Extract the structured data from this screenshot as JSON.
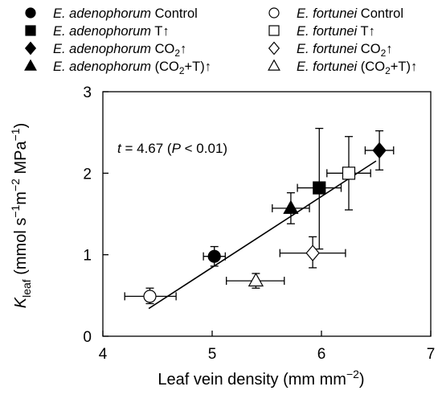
{
  "chart_data": {
    "type": "scatter",
    "xlabel": "Leaf vein density (mm mm",
    "xlabel_sup": "−2",
    "xlabel_close": ")",
    "ylabel": {
      "k": "K",
      "sub": "leaf",
      "unit_a": " (mmol s",
      "sup1": "−1",
      "unit_b": "m",
      "sup2": "−2",
      "unit_c": " MPa",
      "sup3": "−1",
      "close": ")"
    },
    "xlim": [
      4,
      7
    ],
    "ylim": [
      0,
      3
    ],
    "x_ticks": [
      "4",
      "5",
      "6",
      "7"
    ],
    "y_ticks": [
      "0",
      "1",
      "2",
      "3"
    ],
    "annotation": {
      "t": "t",
      "rest": " = 4.67 (",
      "p": "P",
      "rest2": " < 0.01)"
    },
    "regression": {
      "x1": 4.42,
      "y1": 0.34,
      "x2": 6.5,
      "y2": 2.15
    },
    "legend": [
      {
        "species": "E. adenophorum",
        "treatment": " Control",
        "marker": "circle",
        "fill": "filled"
      },
      {
        "species": "E. fortunei",
        "treatment": " Control",
        "marker": "circle",
        "fill": "open"
      },
      {
        "species": "E. adenophorum",
        "treatment": " T↑",
        "marker": "square",
        "fill": "filled"
      },
      {
        "species": "E. fortunei",
        "treatment": " T↑",
        "marker": "square",
        "fill": "open"
      },
      {
        "species": "E. adenophorum",
        "treatment": " CO",
        "sub": "2",
        "tail": "↑",
        "marker": "diamond",
        "fill": "filled"
      },
      {
        "species": "E. fortunei",
        "treatment": " CO",
        "sub": "2",
        "tail": "↑",
        "marker": "diamond",
        "fill": "open"
      },
      {
        "species": "E. adenophorum",
        "treatment": " (CO",
        "sub": "2",
        "tail": "+T)↑",
        "marker": "triangle",
        "fill": "filled"
      },
      {
        "species": "E. fortunei",
        "treatment": " (CO",
        "sub": "2",
        "tail": "+T)↑",
        "marker": "triangle",
        "fill": "open"
      }
    ],
    "series": [
      {
        "species": "E. adenophorum",
        "treatment": "Control",
        "marker": "circle",
        "fill": "filled",
        "x": 5.02,
        "y": 0.98,
        "xerr": [
          4.92,
          5.12
        ],
        "yerr": [
          0.86,
          1.1
        ]
      },
      {
        "species": "E. fortunei",
        "treatment": "Control",
        "marker": "circle",
        "fill": "open",
        "x": 4.43,
        "y": 0.49,
        "xerr": [
          4.2,
          4.67
        ],
        "yerr": [
          0.4,
          0.59
        ]
      },
      {
        "species": "E. adenophorum",
        "treatment": "T↑",
        "marker": "square",
        "fill": "filled",
        "x": 5.98,
        "y": 1.82,
        "xerr": [
          5.78,
          6.18
        ],
        "yerr": [
          1.07,
          2.55
        ]
      },
      {
        "species": "E. fortunei",
        "treatment": "T↑",
        "marker": "square",
        "fill": "open",
        "x": 6.25,
        "y": 2.0,
        "xerr": [
          6.05,
          6.45
        ],
        "yerr": [
          1.55,
          2.45
        ]
      },
      {
        "species": "E. adenophorum",
        "treatment": "CO2↑",
        "marker": "diamond",
        "fill": "filled",
        "x": 6.53,
        "y": 2.28,
        "xerr": [
          6.4,
          6.66
        ],
        "yerr": [
          2.04,
          2.52
        ]
      },
      {
        "species": "E. fortunei",
        "treatment": "CO2↑",
        "marker": "diamond",
        "fill": "open",
        "x": 5.92,
        "y": 1.02,
        "xerr": [
          5.62,
          6.22
        ],
        "yerr": [
          0.84,
          1.22
        ]
      },
      {
        "species": "E. adenophorum",
        "treatment": "(CO2+T)↑",
        "marker": "triangle",
        "fill": "filled",
        "x": 5.72,
        "y": 1.57,
        "xerr": [
          5.55,
          5.89
        ],
        "yerr": [
          1.38,
          1.76
        ]
      },
      {
        "species": "E. fortunei",
        "treatment": "(CO2+T)↑",
        "marker": "triangle",
        "fill": "open",
        "x": 5.4,
        "y": 0.68,
        "xerr": [
          5.13,
          5.66
        ],
        "yerr": [
          0.59,
          0.77
        ]
      }
    ]
  }
}
